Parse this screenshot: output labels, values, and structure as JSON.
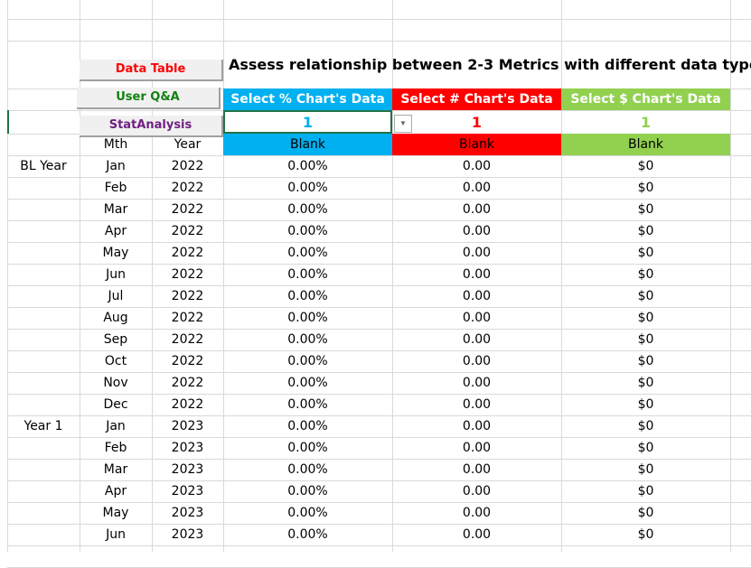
{
  "buttons": {
    "data_table": "Data Table",
    "user_qa": "User Q&A",
    "stat_analysis": "StatAnalysis"
  },
  "title": "Assess relationship between 2-3 Metrics with different data types",
  "headers": {
    "pct": "Select % Chart's Data",
    "num": "Select # Chart's Data",
    "usd": "Select $ Chart's Data"
  },
  "selections": {
    "pct": "1",
    "num": "1",
    "usd": "1"
  },
  "series_names": {
    "pct": "Blank",
    "num": "Blank",
    "usd": "Blank"
  },
  "columns": {
    "mth": "Mth",
    "year": "Year"
  },
  "colors": {
    "blue": "#00b0f0",
    "red": "#ff0000",
    "green": "#92d050"
  },
  "rows": [
    {
      "group": "BL Year",
      "mth": "Jan",
      "year": "2022",
      "pct": "0.00%",
      "num": "0.00",
      "usd": "$0"
    },
    {
      "group": "",
      "mth": "Feb",
      "year": "2022",
      "pct": "0.00%",
      "num": "0.00",
      "usd": "$0"
    },
    {
      "group": "",
      "mth": "Mar",
      "year": "2022",
      "pct": "0.00%",
      "num": "0.00",
      "usd": "$0"
    },
    {
      "group": "",
      "mth": "Apr",
      "year": "2022",
      "pct": "0.00%",
      "num": "0.00",
      "usd": "$0"
    },
    {
      "group": "",
      "mth": "May",
      "year": "2022",
      "pct": "0.00%",
      "num": "0.00",
      "usd": "$0"
    },
    {
      "group": "",
      "mth": "Jun",
      "year": "2022",
      "pct": "0.00%",
      "num": "0.00",
      "usd": "$0"
    },
    {
      "group": "",
      "mth": "Jul",
      "year": "2022",
      "pct": "0.00%",
      "num": "0.00",
      "usd": "$0"
    },
    {
      "group": "",
      "mth": "Aug",
      "year": "2022",
      "pct": "0.00%",
      "num": "0.00",
      "usd": "$0"
    },
    {
      "group": "",
      "mth": "Sep",
      "year": "2022",
      "pct": "0.00%",
      "num": "0.00",
      "usd": "$0"
    },
    {
      "group": "",
      "mth": "Oct",
      "year": "2022",
      "pct": "0.00%",
      "num": "0.00",
      "usd": "$0"
    },
    {
      "group": "",
      "mth": "Nov",
      "year": "2022",
      "pct": "0.00%",
      "num": "0.00",
      "usd": "$0"
    },
    {
      "group": "",
      "mth": "Dec",
      "year": "2022",
      "pct": "0.00%",
      "num": "0.00",
      "usd": "$0"
    },
    {
      "group": "Year 1",
      "mth": "Jan",
      "year": "2023",
      "pct": "0.00%",
      "num": "0.00",
      "usd": "$0"
    },
    {
      "group": "",
      "mth": "Feb",
      "year": "2023",
      "pct": "0.00%",
      "num": "0.00",
      "usd": "$0"
    },
    {
      "group": "",
      "mth": "Mar",
      "year": "2023",
      "pct": "0.00%",
      "num": "0.00",
      "usd": "$0"
    },
    {
      "group": "",
      "mth": "Apr",
      "year": "2023",
      "pct": "0.00%",
      "num": "0.00",
      "usd": "$0"
    },
    {
      "group": "",
      "mth": "May",
      "year": "2023",
      "pct": "0.00%",
      "num": "0.00",
      "usd": "$0"
    },
    {
      "group": "",
      "mth": "Jun",
      "year": "2023",
      "pct": "0.00%",
      "num": "0.00",
      "usd": "$0"
    }
  ]
}
